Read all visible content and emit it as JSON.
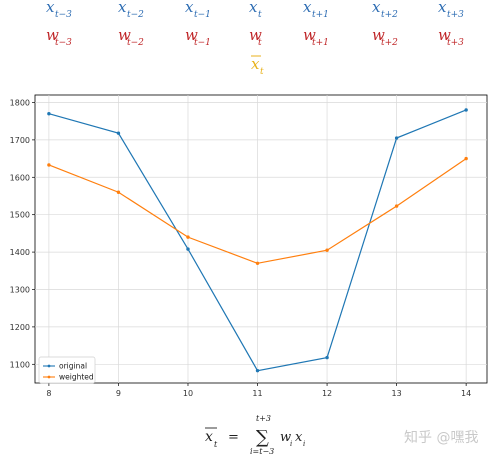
{
  "header": {
    "x_terms": [
      {
        "base": "x",
        "sub": "t−3"
      },
      {
        "base": "x",
        "sub": "t−2"
      },
      {
        "base": "x",
        "sub": "t−1"
      },
      {
        "base": "x",
        "sub": "t"
      },
      {
        "base": "x",
        "sub": "t+1"
      },
      {
        "base": "x",
        "sub": "t+2"
      },
      {
        "base": "x",
        "sub": "t+3"
      }
    ],
    "w_terms": [
      {
        "base": "w",
        "sub": "t−3"
      },
      {
        "base": "w",
        "sub": "t−2"
      },
      {
        "base": "w",
        "sub": "t−1"
      },
      {
        "base": "w",
        "sub": "t"
      },
      {
        "base": "w",
        "sub": "t+1"
      },
      {
        "base": "w",
        "sub": "t+2"
      },
      {
        "base": "w",
        "sub": "t+3"
      }
    ],
    "result": {
      "base": "x",
      "sub": "t"
    },
    "colors": {
      "x": "#2e6db3",
      "w": "#c0282a",
      "result": "#e8b21c"
    }
  },
  "chart_data": {
    "type": "line",
    "x": [
      8,
      9,
      10,
      11,
      12,
      13,
      14
    ],
    "series": [
      {
        "name": "original",
        "color": "#1f77b4",
        "values": [
          1770,
          1718,
          1408,
          1083,
          1118,
          1705,
          1780
        ]
      },
      {
        "name": "weighted",
        "color": "#ff7f0e",
        "values": [
          1633,
          1560,
          1440,
          1370,
          1405,
          1523,
          1650
        ]
      }
    ],
    "xlim": [
      7.8,
      14.3
    ],
    "ylim": [
      1050,
      1820
    ],
    "xticks": [
      "8",
      "9",
      "10",
      "11",
      "12",
      "13",
      "14"
    ],
    "yticks": [
      "1100",
      "1200",
      "1300",
      "1400",
      "1500",
      "1600",
      "1700",
      "1800"
    ],
    "grid": true,
    "legend_position": "lower-left",
    "title": "",
    "xlabel": "",
    "ylabel": ""
  },
  "formula": {
    "lhs": {
      "base": "x",
      "sub": "t"
    },
    "equals": "=",
    "sum_symbol": "∑",
    "upper": "t+3",
    "lower": "i=t−3",
    "term_w": "w",
    "term_w_sub": "i",
    "term_x": "x",
    "term_x_sub": "i"
  },
  "watermark": "知乎 @嘿我"
}
